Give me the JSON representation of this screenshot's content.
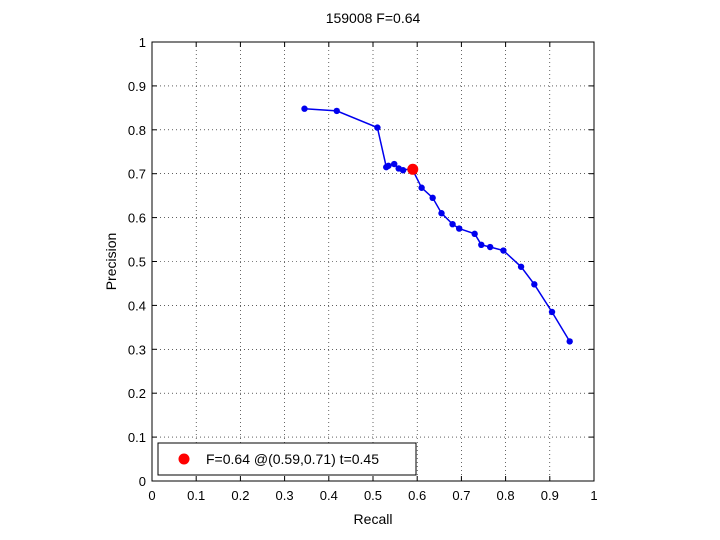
{
  "chart_data": {
    "type": "line",
    "title": "159008 F=0.64",
    "xlabel": "Recall",
    "ylabel": "Precision",
    "xlim": [
      0,
      1
    ],
    "ylim": [
      0,
      1
    ],
    "xticks": [
      "0",
      "0.1",
      "0.2",
      "0.3",
      "0.4",
      "0.5",
      "0.6",
      "0.7",
      "0.8",
      "0.9",
      "1"
    ],
    "yticks": [
      "0",
      "0.1",
      "0.2",
      "0.3",
      "0.4",
      "0.5",
      "0.6",
      "0.7",
      "0.8",
      "0.9",
      "1"
    ],
    "grid": true,
    "series": [
      {
        "color": "#0000ee",
        "marker": "dot",
        "x": [
          0.345,
          0.418,
          0.51,
          0.53,
          0.535,
          0.548,
          0.558,
          0.568,
          0.588,
          0.61,
          0.635,
          0.655,
          0.68,
          0.695,
          0.73,
          0.745,
          0.765,
          0.795,
          0.835,
          0.865,
          0.905,
          0.945
        ],
        "y": [
          0.848,
          0.843,
          0.805,
          0.715,
          0.718,
          0.722,
          0.712,
          0.708,
          0.712,
          0.668,
          0.645,
          0.61,
          0.585,
          0.575,
          0.563,
          0.538,
          0.533,
          0.525,
          0.488,
          0.448,
          0.385,
          0.318
        ]
      }
    ],
    "highlight": {
      "color": "#ff0000",
      "x": 0.59,
      "y": 0.71
    },
    "legend": {
      "position": "bottom-left",
      "text": "F=0.64 @(0.59,0.71) t=0.45"
    }
  }
}
